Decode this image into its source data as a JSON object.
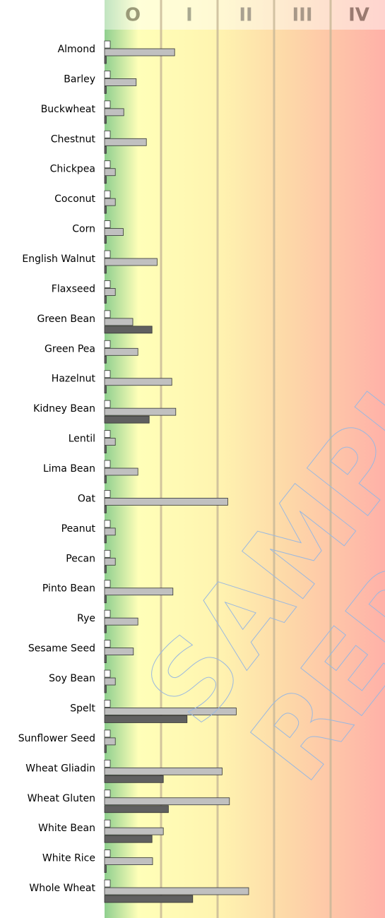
{
  "chart_data": {
    "type": "bar",
    "orientation": "horizontal",
    "categories": [
      "Almond",
      "Barley",
      "Buckwheat",
      "Chestnut",
      "Chickpea",
      "Coconut",
      "Corn",
      "English Walnut",
      "Flaxseed",
      "Green Bean",
      "Green Pea",
      "Hazelnut",
      "Kidney Bean",
      "Lentil",
      "Lima Bean",
      "Oat",
      "Peanut",
      "Pecan",
      "Pinto Bean",
      "Rye",
      "Sesame Seed",
      "Soy Bean",
      "Spelt",
      "Sunflower Seed",
      "Wheat Gliadin",
      "Wheat Gluten",
      "White Bean",
      "White Rice",
      "Whole Wheat"
    ],
    "series": [
      {
        "color": "#ffffff",
        "values": [
          0.1,
          0.1,
          0.1,
          0.1,
          0.1,
          0.1,
          0.1,
          0.1,
          0.1,
          0.1,
          0.1,
          0.1,
          0.1,
          0.1,
          0.1,
          0.1,
          0.1,
          0.1,
          0.1,
          0.1,
          0.1,
          0.1,
          0.1,
          0.1,
          0.1,
          0.1,
          0.1,
          0.1,
          0.1
        ]
      },
      {
        "color": "#c0c0c0",
        "values": [
          1.24,
          0.56,
          0.34,
          0.74,
          0.19,
          0.19,
          0.33,
          0.93,
          0.19,
          0.5,
          0.59,
          1.19,
          1.26,
          0.19,
          0.59,
          2.18,
          0.19,
          0.19,
          1.21,
          0.59,
          0.51,
          0.19,
          2.33,
          0.19,
          2.08,
          2.21,
          1.04,
          0.85,
          2.55
        ]
      },
      {
        "color": "#606060",
        "values": [
          0.03,
          0.03,
          0.03,
          0.03,
          0.03,
          0.03,
          0.03,
          0.03,
          0.03,
          0.84,
          0.03,
          0.03,
          0.79,
          0.03,
          0.03,
          0.03,
          0.03,
          0.03,
          0.03,
          0.03,
          0.03,
          0.03,
          1.46,
          0.03,
          1.04,
          1.13,
          0.84,
          0.03,
          1.56
        ]
      }
    ],
    "xlim": [
      0,
      5
    ],
    "xticks": [
      {
        "value": 0.5,
        "label": "O"
      },
      {
        "value": 1.5,
        "label": "I"
      },
      {
        "value": 2.5,
        "label": "II"
      },
      {
        "value": 3.5,
        "label": "III"
      },
      {
        "value": 4.5,
        "label": "IV"
      }
    ],
    "tick_colors": [
      "#9a9a78",
      "#a8a890",
      "#a8a090",
      "#a89888",
      "#9a7a70"
    ],
    "watermark": [
      "SAMPLE",
      "REPORT"
    ]
  }
}
